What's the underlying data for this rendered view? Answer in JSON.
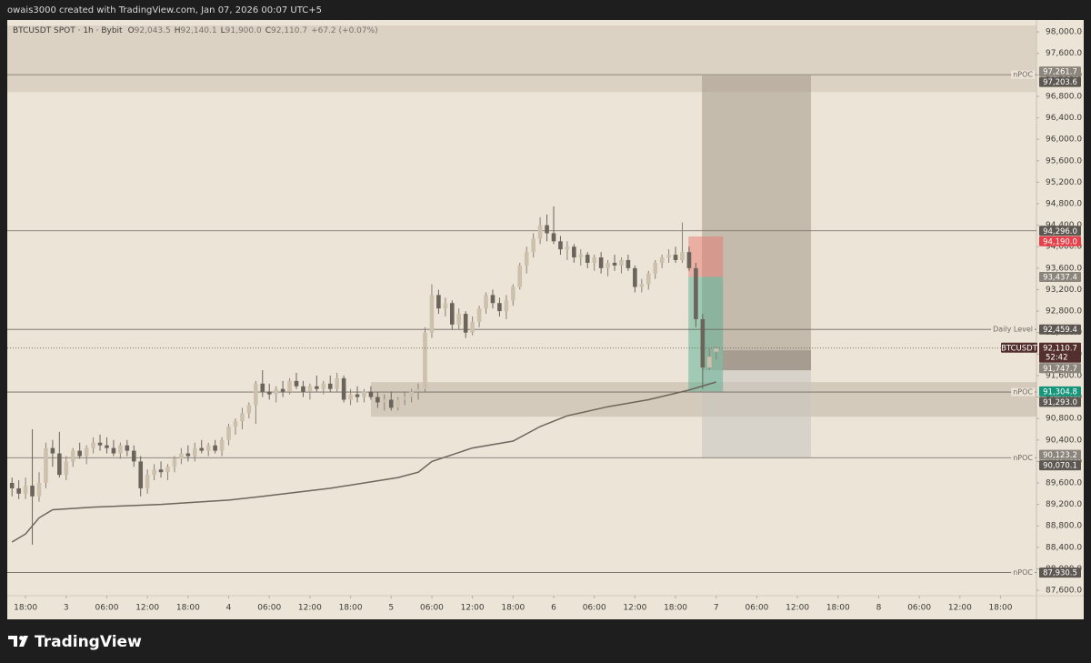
{
  "top_bar": "owais3000 created with TradingView.com, Jan 07, 2026 00:07 UTC+5",
  "footer": {
    "brand": "TradingView"
  },
  "chart_data": {
    "type": "candlestick",
    "legend": {
      "symbol": "BTCUSDT SPOT · 1h · Bybit",
      "items": [
        {
          "key": "O",
          "value": "92,043.5"
        },
        {
          "key": "H",
          "value": "92,140.1"
        },
        {
          "key": "L",
          "value": "91,900.0"
        },
        {
          "key": "C",
          "value": "92,110.7"
        }
      ],
      "change": "+67.2 (+0.07%)"
    },
    "up_color": "#cdc1ad",
    "down_color": "#6b645b",
    "wick_color": "#8a8176",
    "grid": false,
    "xlim": [
      -2.7,
      149.3
    ],
    "ylim": [
      87500,
      98120
    ],
    "x": [
      -2,
      -1,
      0,
      1,
      2,
      3,
      4,
      5,
      6,
      7,
      8,
      9,
      10,
      11,
      12,
      13,
      14,
      15,
      16,
      17,
      18,
      19,
      20,
      21,
      22,
      23,
      24,
      25,
      26,
      27,
      28,
      29,
      30,
      31,
      32,
      33,
      34,
      35,
      36,
      37,
      38,
      39,
      40,
      41,
      42,
      43,
      44,
      45,
      46,
      47,
      48,
      49,
      50,
      51,
      52,
      53,
      54,
      55,
      56,
      57,
      58,
      59,
      60,
      61,
      62,
      63,
      64,
      65,
      66,
      67,
      68,
      69,
      70,
      71,
      72,
      73,
      74,
      75,
      76,
      77,
      78,
      79,
      80,
      81,
      82,
      83,
      84,
      85,
      86,
      87,
      88,
      89,
      90,
      91,
      92,
      93,
      94,
      95,
      96,
      97,
      98,
      99,
      100,
      101,
      102
    ],
    "open": [
      89600,
      89500,
      89400,
      89550,
      89350,
      89600,
      90250,
      90150,
      89750,
      90000,
      90200,
      90100,
      90250,
      90350,
      90300,
      90250,
      90150,
      90300,
      90200,
      90000,
      89500,
      89750,
      89850,
      89800,
      89900,
      90050,
      90150,
      90100,
      90250,
      90200,
      90300,
      90200,
      90400,
      90650,
      90750,
      90900,
      91050,
      91450,
      91300,
      91250,
      91350,
      91300,
      91500,
      91400,
      91300,
      91400,
      91350,
      91450,
      91350,
      91550,
      91150,
      91250,
      91200,
      91300,
      91200,
      91100,
      91150,
      91000,
      91150,
      91200,
      91300,
      91350,
      92400,
      93100,
      92850,
      92950,
      92550,
      92750,
      92400,
      92600,
      92850,
      93100,
      92950,
      92800,
      93000,
      93250,
      93650,
      93900,
      94150,
      94400,
      94250,
      94100,
      93950,
      94000,
      93800,
      93850,
      93700,
      93800,
      93600,
      93700,
      93650,
      93750,
      93600,
      93250,
      93300,
      93500,
      93700,
      93800,
      93850,
      93750,
      93900,
      93600,
      92650,
      91750,
      92043.5
    ],
    "high": [
      89700,
      89650,
      89700,
      90600,
      89800,
      90350,
      90400,
      90550,
      90100,
      90250,
      90350,
      90300,
      90450,
      90500,
      90450,
      90400,
      90350,
      90400,
      90300,
      90100,
      89850,
      89950,
      90000,
      89950,
      90100,
      90250,
      90300,
      90350,
      90400,
      90350,
      90400,
      90450,
      90700,
      90800,
      91000,
      91100,
      91500,
      91700,
      91450,
      91400,
      91500,
      91550,
      91650,
      91500,
      91450,
      91600,
      91500,
      91600,
      91650,
      91600,
      91350,
      91400,
      91350,
      91400,
      91300,
      91250,
      91300,
      91200,
      91300,
      91350,
      91450,
      92500,
      93300,
      93200,
      93050,
      93000,
      92850,
      92800,
      92700,
      92900,
      93150,
      93200,
      93050,
      93100,
      93300,
      93700,
      94000,
      94250,
      94550,
      94600,
      94750,
      94200,
      94100,
      94050,
      93950,
      93900,
      93850,
      93900,
      93750,
      93850,
      93800,
      93850,
      93650,
      93400,
      93550,
      93750,
      93850,
      93950,
      94000,
      94450,
      94000,
      93700,
      92750,
      92100,
      92140.1
    ],
    "low": [
      89350,
      89300,
      89300,
      88450,
      89250,
      89500,
      89900,
      89700,
      89650,
      89900,
      90050,
      89950,
      90150,
      90200,
      90150,
      90100,
      90050,
      90100,
      89900,
      89350,
      89400,
      89650,
      89700,
      89650,
      89800,
      89950,
      90000,
      90000,
      90150,
      90100,
      90150,
      90100,
      90300,
      90500,
      90600,
      90800,
      90700,
      91200,
      91150,
      91100,
      91200,
      91250,
      91350,
      91200,
      91150,
      91300,
      91250,
      91300,
      91300,
      91100,
      91050,
      91100,
      91100,
      91150,
      91000,
      90950,
      90950,
      90950,
      91050,
      91100,
      91150,
      91300,
      92300,
      92750,
      92700,
      92450,
      92450,
      92300,
      92350,
      92500,
      92750,
      92850,
      92700,
      92650,
      92900,
      93200,
      93500,
      93800,
      94050,
      94100,
      94050,
      93850,
      93750,
      93700,
      93650,
      93600,
      93550,
      93500,
      93450,
      93550,
      93500,
      93550,
      93150,
      93150,
      93200,
      93400,
      93600,
      93700,
      93700,
      93700,
      93550,
      92500,
      91350,
      91700,
      91900
    ],
    "close": [
      89500,
      89400,
      89550,
      89350,
      89600,
      90250,
      90150,
      89750,
      90000,
      90200,
      90100,
      90250,
      90350,
      90300,
      90250,
      90150,
      90300,
      90200,
      90000,
      89500,
      89750,
      89850,
      89800,
      89900,
      90050,
      90150,
      90100,
      90250,
      90200,
      90300,
      90200,
      90400,
      90650,
      90750,
      90900,
      91050,
      91450,
      91300,
      91250,
      91350,
      91300,
      91500,
      91400,
      91300,
      91400,
      91350,
      91450,
      91350,
      91550,
      91150,
      91250,
      91200,
      91300,
      91200,
      91100,
      91150,
      91000,
      91150,
      91200,
      91300,
      91350,
      92400,
      93100,
      92850,
      92950,
      92550,
      92750,
      92400,
      92600,
      92850,
      93100,
      92950,
      92800,
      93000,
      93250,
      93650,
      93900,
      94150,
      94400,
      94250,
      94100,
      93950,
      94000,
      93800,
      93850,
      93700,
      93800,
      93600,
      93700,
      93650,
      93750,
      93600,
      93250,
      93300,
      93500,
      93700,
      93800,
      93850,
      93750,
      93900,
      93600,
      92650,
      91750,
      91950,
      92110.7
    ],
    "line": {
      "color": "#6e655b",
      "x": [
        -2,
        0,
        2,
        4,
        10,
        20,
        30,
        35,
        45,
        55,
        58,
        60,
        66,
        72,
        76,
        80,
        86,
        92,
        98,
        102
      ],
      "values": [
        88500,
        88650,
        88950,
        89100,
        89150,
        89200,
        89280,
        89350,
        89500,
        89700,
        89800,
        90000,
        90250,
        90380,
        90650,
        90850,
        91020,
        91150,
        91330,
        91480
      ]
    },
    "zones": [
      {
        "x0": -2.7,
        "x1": 149.3,
        "top": 98120,
        "bottom": 96880,
        "color": "rgba(205,195,180,0.55)"
      },
      {
        "x0": 51,
        "x1": 149.3,
        "top": 91478,
        "bottom": 90834,
        "color": "rgba(150,138,120,0.28)"
      },
      {
        "x0": 99.9,
        "x1": 116,
        "top": 97187,
        "bottom": 91698,
        "color": "rgba(150,138,122,0.45)"
      },
      {
        "x0": 99.9,
        "x1": 116,
        "top": 91698,
        "bottom": 90072,
        "color": "rgba(200,196,192,0.55)"
      },
      {
        "x0": 103,
        "x1": 116,
        "top": 92071,
        "bottom": 91698,
        "color": "rgba(110,100,88,0.35)"
      },
      {
        "x0": 97.9,
        "x1": 103,
        "top": 94190,
        "bottom": 93437.4,
        "color": "rgba(232,120,110,0.5)"
      },
      {
        "x0": 97.9,
        "x1": 103,
        "top": 93437.4,
        "bottom": 91304.8,
        "color": "rgba(70,170,140,0.45)"
      }
    ],
    "lines": [
      {
        "value": 97203.6,
        "text": "nPOC"
      },
      {
        "value": 94296.0
      },
      {
        "value": 92459.4,
        "text": "Daily Level"
      },
      {
        "value": 91293.0,
        "text": "nPOC"
      },
      {
        "value": 90070.1,
        "text": "nPOC"
      },
      {
        "value": 87930.5,
        "text": "nPOC"
      }
    ],
    "last_price": {
      "symbol": "BTCUSDT",
      "value": 92110.7,
      "label": "92,110.7",
      "countdown": "52:42",
      "color": "#53302e"
    },
    "price_labels": [
      {
        "value": 97261.7,
        "label": "97,261.7",
        "color": "#8c857c"
      },
      {
        "value": 97203.6,
        "label": "97,203.6",
        "color": "#5d5751"
      },
      {
        "value": 94296.0,
        "label": "94,296.0",
        "color": "#5d5751"
      },
      {
        "value": 94190.0,
        "label": "94,190.0",
        "color": "#e8404a"
      },
      {
        "value": 93437.4,
        "label": "93,437.4",
        "color": "#8c857c"
      },
      {
        "value": 92459.4,
        "label": "92,459.4",
        "color": "#5d5751"
      },
      {
        "value": 91747.7,
        "label": "91,747.7",
        "color": "#8c857c"
      },
      {
        "value": 91304.8,
        "label": "91,304.8",
        "color": "#16957b"
      },
      {
        "value": 91293.0,
        "label": "91,293.0",
        "color": "#5d5751"
      },
      {
        "value": 90123.2,
        "label": "90,123.2",
        "color": "#8c857c"
      },
      {
        "value": 90070.1,
        "label": "90,070.1",
        "color": "#5d5751"
      },
      {
        "value": 87930.5,
        "label": "87,930.5",
        "color": "#5d5751"
      }
    ],
    "yticks": [
      {
        "value": 87600,
        "label": "87,600.0"
      },
      {
        "value": 88000,
        "label": "88,000.0"
      },
      {
        "value": 88400,
        "label": "88,400.0"
      },
      {
        "value": 88800,
        "label": "88,800.0"
      },
      {
        "value": 89200,
        "label": "89,200.0"
      },
      {
        "value": 89600,
        "label": "89,600.0"
      },
      {
        "value": 90000,
        "label": "90,000.0"
      },
      {
        "value": 90400,
        "label": "90,400.0"
      },
      {
        "value": 90800,
        "label": "90,800.0"
      },
      {
        "value": 91200,
        "label": "91,200.0"
      },
      {
        "value": 91600,
        "label": "91,600.0"
      },
      {
        "value": 92000,
        "label": "92,000.0"
      },
      {
        "value": 92400,
        "label": "92,400.0"
      },
      {
        "value": 92800,
        "label": "92,800.0"
      },
      {
        "value": 93200,
        "label": "93,200.0"
      },
      {
        "value": 93600,
        "label": "93,600.0"
      },
      {
        "value": 94000,
        "label": "94,000.0"
      },
      {
        "value": 94400,
        "label": "94,400.0"
      },
      {
        "value": 94800,
        "label": "94,800.0"
      },
      {
        "value": 95200,
        "label": "95,200.0"
      },
      {
        "value": 95600,
        "label": "95,600.0"
      },
      {
        "value": 96000,
        "label": "96,000.0"
      },
      {
        "value": 96400,
        "label": "96,400.0"
      },
      {
        "value": 96800,
        "label": "96,800.0"
      },
      {
        "value": 97200,
        "label": "97,200.0"
      },
      {
        "value": 97600,
        "label": "97,600.0"
      },
      {
        "value": 98000,
        "label": "98,000.0"
      }
    ],
    "xticks": [
      {
        "value": 0,
        "label": "18:00"
      },
      {
        "value": 6,
        "label": "3"
      },
      {
        "value": 12,
        "label": "06:00"
      },
      {
        "value": 18,
        "label": "12:00"
      },
      {
        "value": 24,
        "label": "18:00"
      },
      {
        "value": 30,
        "label": "4"
      },
      {
        "value": 36,
        "label": "06:00"
      },
      {
        "value": 42,
        "label": "12:00"
      },
      {
        "value": 48,
        "label": "18:00"
      },
      {
        "value": 54,
        "label": "5"
      },
      {
        "value": 60,
        "label": "06:00"
      },
      {
        "value": 66,
        "label": "12:00"
      },
      {
        "value": 72,
        "label": "18:00"
      },
      {
        "value": 78,
        "label": "6"
      },
      {
        "value": 84,
        "label": "06:00"
      },
      {
        "value": 90,
        "label": "12:00"
      },
      {
        "value": 96,
        "label": "18:00"
      },
      {
        "value": 102,
        "label": "7"
      },
      {
        "value": 108,
        "label": "06:00"
      },
      {
        "value": 114,
        "label": "12:00"
      },
      {
        "value": 120,
        "label": "18:00"
      },
      {
        "value": 126,
        "label": "8"
      },
      {
        "value": 132,
        "label": "06:00"
      },
      {
        "value": 138,
        "label": "12:00"
      },
      {
        "value": 144,
        "label": "18:00"
      }
    ]
  }
}
